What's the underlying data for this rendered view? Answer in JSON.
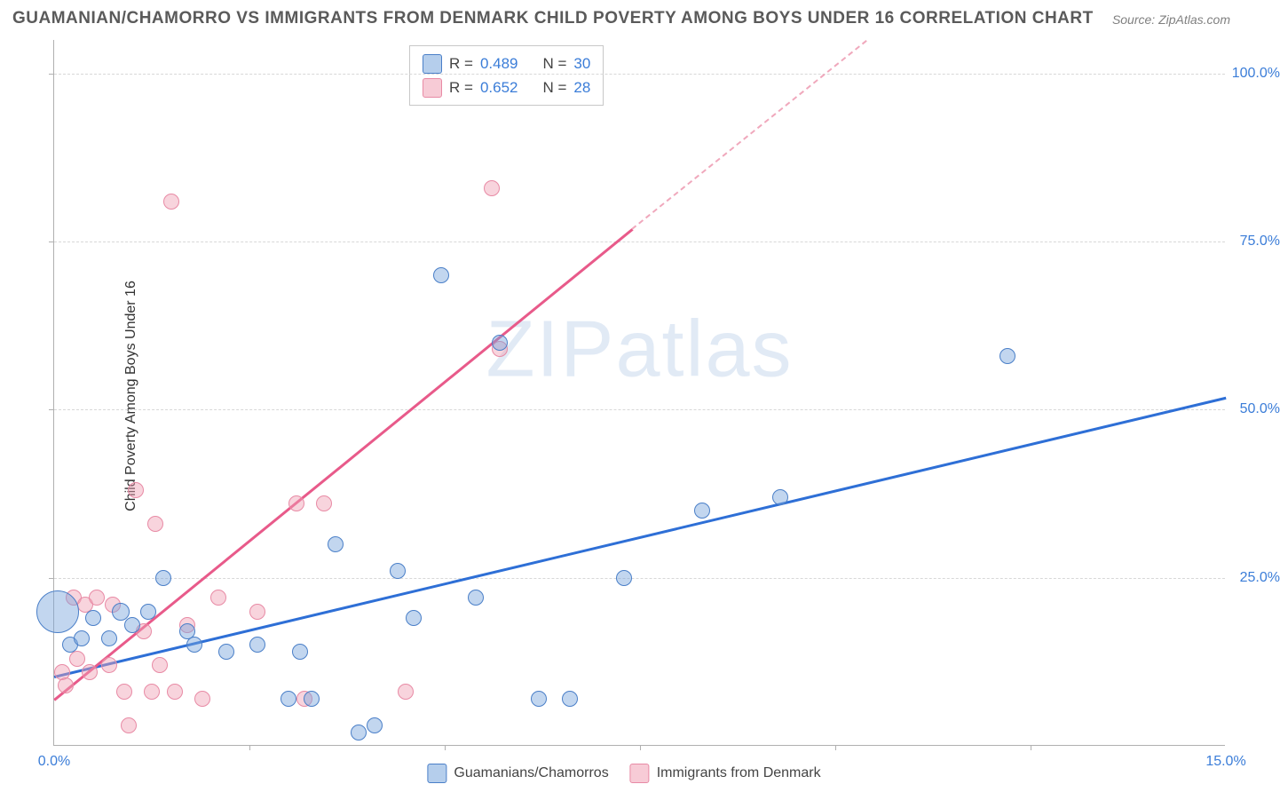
{
  "title": "GUAMANIAN/CHAMORRO VS IMMIGRANTS FROM DENMARK CHILD POVERTY AMONG BOYS UNDER 16 CORRELATION CHART",
  "source": "Source: ZipAtlas.com",
  "watermark": "ZIPatlas",
  "chart": {
    "type": "scatter",
    "y_axis_label": "Child Poverty Among Boys Under 16",
    "xlim": [
      0,
      15
    ],
    "ylim": [
      0,
      105
    ],
    "x_ticks": [
      0,
      2.5,
      5,
      7.5,
      10,
      12.5,
      15
    ],
    "x_tick_labels": [
      "0.0%",
      "",
      "",
      "",
      "",
      "",
      "15.0%"
    ],
    "y_ticks": [
      25,
      50,
      75,
      100
    ],
    "y_tick_labels": [
      "25.0%",
      "50.0%",
      "75.0%",
      "100.0%"
    ],
    "grid_color": "#d8d8d8",
    "background_color": "#ffffff",
    "axis_color": "#b0b0b0",
    "tick_label_color": "#3b7dd8",
    "tick_label_fontsize": 16,
    "title_fontsize": 19,
    "title_color": "#5a5a5a",
    "point_radius_default": 9,
    "series": {
      "blue": {
        "label": "Guamanians/Chamorros",
        "fill": "rgba(120,165,220,0.45)",
        "stroke": "#4a7fc8",
        "R": "0.489",
        "N": "30",
        "trend": {
          "x1": 0,
          "y1": 10.5,
          "x2": 15,
          "y2": 52,
          "color": "#2e6fd6",
          "width": 2.5
        },
        "points": [
          {
            "x": 0.05,
            "y": 20,
            "r": 24
          },
          {
            "x": 0.2,
            "y": 15,
            "r": 9
          },
          {
            "x": 0.35,
            "y": 16,
            "r": 9
          },
          {
            "x": 0.5,
            "y": 19,
            "r": 9
          },
          {
            "x": 0.7,
            "y": 16,
            "r": 9
          },
          {
            "x": 0.85,
            "y": 20,
            "r": 10
          },
          {
            "x": 1.0,
            "y": 18,
            "r": 9
          },
          {
            "x": 1.2,
            "y": 20,
            "r": 9
          },
          {
            "x": 1.4,
            "y": 25,
            "r": 9
          },
          {
            "x": 1.7,
            "y": 17,
            "r": 9
          },
          {
            "x": 1.8,
            "y": 15,
            "r": 9
          },
          {
            "x": 2.2,
            "y": 14,
            "r": 9
          },
          {
            "x": 2.6,
            "y": 15,
            "r": 9
          },
          {
            "x": 3.0,
            "y": 7,
            "r": 9
          },
          {
            "x": 3.15,
            "y": 14,
            "r": 9
          },
          {
            "x": 3.3,
            "y": 7,
            "r": 9
          },
          {
            "x": 3.6,
            "y": 30,
            "r": 9
          },
          {
            "x": 3.9,
            "y": 2,
            "r": 9
          },
          {
            "x": 4.1,
            "y": 3,
            "r": 9
          },
          {
            "x": 4.4,
            "y": 26,
            "r": 9
          },
          {
            "x": 4.6,
            "y": 19,
            "r": 9
          },
          {
            "x": 4.95,
            "y": 70,
            "r": 9
          },
          {
            "x": 5.4,
            "y": 22,
            "r": 9
          },
          {
            "x": 5.7,
            "y": 60,
            "r": 9
          },
          {
            "x": 6.2,
            "y": 7,
            "r": 9
          },
          {
            "x": 6.6,
            "y": 7,
            "r": 9
          },
          {
            "x": 7.3,
            "y": 25,
            "r": 9
          },
          {
            "x": 8.3,
            "y": 35,
            "r": 9
          },
          {
            "x": 9.3,
            "y": 37,
            "r": 9
          },
          {
            "x": 12.2,
            "y": 58,
            "r": 9
          }
        ]
      },
      "pink": {
        "label": "Immigrants from Denmark",
        "fill": "rgba(240,160,180,0.45)",
        "stroke": "#e88aa5",
        "R": "0.652",
        "N": "28",
        "trend_solid": {
          "x1": 0,
          "y1": 7,
          "x2": 7.4,
          "y2": 77,
          "color": "#e85a8a",
          "width": 2.5
        },
        "trend_dash": {
          "x1": 7.4,
          "y1": 77,
          "x2": 10.4,
          "y2": 105,
          "color": "#f0a8bc",
          "width": 2
        },
        "points": [
          {
            "x": 0.1,
            "y": 11,
            "r": 9
          },
          {
            "x": 0.15,
            "y": 9,
            "r": 9
          },
          {
            "x": 0.25,
            "y": 22,
            "r": 9
          },
          {
            "x": 0.3,
            "y": 13,
            "r": 9
          },
          {
            "x": 0.4,
            "y": 21,
            "r": 9
          },
          {
            "x": 0.45,
            "y": 11,
            "r": 9
          },
          {
            "x": 0.55,
            "y": 22,
            "r": 9
          },
          {
            "x": 0.7,
            "y": 12,
            "r": 9
          },
          {
            "x": 0.75,
            "y": 21,
            "r": 9
          },
          {
            "x": 0.9,
            "y": 8,
            "r": 9
          },
          {
            "x": 0.95,
            "y": 3,
            "r": 9
          },
          {
            "x": 1.05,
            "y": 38,
            "r": 9
          },
          {
            "x": 1.15,
            "y": 17,
            "r": 9
          },
          {
            "x": 1.25,
            "y": 8,
            "r": 9
          },
          {
            "x": 1.3,
            "y": 33,
            "r": 9
          },
          {
            "x": 1.35,
            "y": 12,
            "r": 9
          },
          {
            "x": 1.5,
            "y": 81,
            "r": 9
          },
          {
            "x": 1.55,
            "y": 8,
            "r": 9
          },
          {
            "x": 1.7,
            "y": 18,
            "r": 9
          },
          {
            "x": 1.9,
            "y": 7,
            "r": 9
          },
          {
            "x": 2.1,
            "y": 22,
            "r": 9
          },
          {
            "x": 2.6,
            "y": 20,
            "r": 9
          },
          {
            "x": 3.1,
            "y": 36,
            "r": 9
          },
          {
            "x": 3.2,
            "y": 7,
            "r": 9
          },
          {
            "x": 3.45,
            "y": 36,
            "r": 9
          },
          {
            "x": 4.5,
            "y": 8,
            "r": 9
          },
          {
            "x": 5.6,
            "y": 83,
            "r": 9
          },
          {
            "x": 5.7,
            "y": 59,
            "r": 9
          }
        ]
      }
    }
  },
  "stats_box": {
    "rows": [
      {
        "swatch": "blue",
        "r_label": "R =",
        "r_val": "0.489",
        "n_label": "N =",
        "n_val": "30"
      },
      {
        "swatch": "pink",
        "r_label": "R =",
        "r_val": "0.652",
        "n_label": "N =",
        "n_val": "28"
      }
    ]
  },
  "legend": {
    "items": [
      {
        "swatch": "blue",
        "label": "Guamanians/Chamorros"
      },
      {
        "swatch": "pink",
        "label": "Immigrants from Denmark"
      }
    ]
  }
}
